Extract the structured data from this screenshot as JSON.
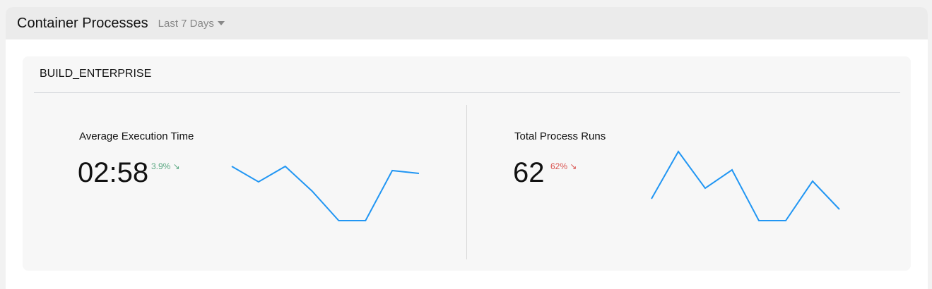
{
  "header": {
    "title": "Container Processes",
    "range": "Last 7 Days"
  },
  "card": {
    "title": "BUILD_ENTERPRISE"
  },
  "metrics": [
    {
      "label": "Average Execution Time",
      "value": "02:58",
      "delta": "3.9% ↘",
      "delta_color": "#5aa882",
      "trend": "down"
    },
    {
      "label": "Total Process Runs",
      "value": "62",
      "delta": "62% ↘",
      "delta_color": "#d9534f",
      "trend": "down"
    }
  ],
  "colors": {
    "line": "#2196f3"
  },
  "chart_data": [
    {
      "type": "line",
      "values": [
        77,
        55,
        77,
        42,
        0,
        0,
        71,
        67
      ]
    },
    {
      "type": "line",
      "values": [
        31,
        98,
        46,
        72,
        0,
        0,
        56,
        16
      ]
    }
  ]
}
